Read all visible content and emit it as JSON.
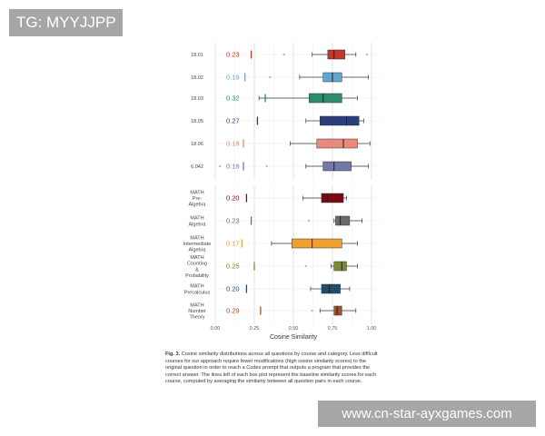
{
  "watermark_top": "TG: MYYJJPP",
  "watermark_bottom": "www.cn-star-ayxgames.com",
  "caption": {
    "label": "Fig. 3.",
    "text": "Cosine similarity distributions across all questions by course and category. Less difficult courses for our approach require fewer modifications (high cosine similarity scores) to the original question in order to reach a Codex prompt that outputs a program that provides the correct answer. The lines left of each box plot represent the baseline similarity scores for each course, computed by averaging the similarity between all question pairs in each course."
  },
  "chart_data": {
    "type": "boxplot",
    "xlabel": "Cosine Similarity",
    "xlim": [
      0,
      1
    ],
    "xticks": [
      "0.00",
      "0.25",
      "0.50",
      "0.75",
      "1.00"
    ],
    "grid": true,
    "panels": [
      {
        "rows": [
          {
            "label": [
              "18.01"
            ],
            "baseline": 0.23,
            "baseline_text": "0.23",
            "color": "#c0392b",
            "min": 0.62,
            "q1": 0.72,
            "median": 0.76,
            "q3": 0.83,
            "max": 0.9,
            "outliers": [
              0.44,
              0.97
            ]
          },
          {
            "label": [
              "18.02"
            ],
            "baseline": 0.19,
            "baseline_text": "0.19",
            "color": "#5fa8cc",
            "min": 0.54,
            "q1": 0.69,
            "median": 0.75,
            "q3": 0.81,
            "max": 0.98,
            "outliers": [
              0.35
            ]
          },
          {
            "label": [
              "18.03"
            ],
            "baseline": 0.32,
            "baseline_text": "0.32",
            "color": "#2e8b6e",
            "min": 0.28,
            "q1": 0.6,
            "median": 0.69,
            "q3": 0.81,
            "max": 0.91,
            "outliers": []
          },
          {
            "label": [
              "18.05"
            ],
            "baseline": 0.27,
            "baseline_text": "0.27",
            "color": "#2c3e7a",
            "min": 0.58,
            "q1": 0.67,
            "median": 0.84,
            "q3": 0.92,
            "max": 0.95,
            "outliers": []
          },
          {
            "label": [
              "18.06"
            ],
            "baseline": 0.18,
            "baseline_text": "0.18",
            "color": "#e8897a",
            "min": 0.48,
            "q1": 0.65,
            "median": 0.82,
            "q3": 0.91,
            "max": 0.99,
            "outliers": []
          },
          {
            "label": [
              "6.042"
            ],
            "baseline": 0.18,
            "baseline_text": "0.18",
            "color": "#7478a6",
            "min": 0.58,
            "q1": 0.69,
            "median": 0.76,
            "q3": 0.87,
            "max": 0.98,
            "outliers": [
              0.03,
              0.33
            ]
          }
        ]
      },
      {
        "rows": [
          {
            "label": [
              "MATH",
              "Pre-",
              "Algebra"
            ],
            "baseline": 0.2,
            "baseline_text": "0.20",
            "color": "#7a0a14",
            "min": 0.56,
            "q1": 0.68,
            "median": 0.72,
            "q3": 0.82,
            "max": 0.84,
            "outliers": []
          },
          {
            "label": [
              "MATH",
              "Algebra"
            ],
            "baseline": 0.23,
            "baseline_text": "0.23",
            "color": "#6b6b6b",
            "min": 0.76,
            "q1": 0.77,
            "median": 0.8,
            "q3": 0.86,
            "max": 0.94,
            "outliers": [
              0.6
            ]
          },
          {
            "label": [
              "MATH",
              "Intermediate",
              "Algebra"
            ],
            "baseline": 0.17,
            "baseline_text": "0.17",
            "color": "#f0a030",
            "min": 0.36,
            "q1": 0.49,
            "median": 0.62,
            "q3": 0.81,
            "max": 0.91,
            "outliers": []
          },
          {
            "label": [
              "MATH",
              "Counting",
              "&",
              "Probability"
            ],
            "baseline": 0.25,
            "baseline_text": "0.25",
            "color": "#7a8a3a",
            "min": 0.74,
            "q1": 0.76,
            "median": 0.81,
            "q3": 0.84,
            "max": 0.91,
            "outliers": [
              0.58
            ]
          },
          {
            "label": [
              "MATH",
              "Precalculus"
            ],
            "baseline": 0.2,
            "baseline_text": "0.20",
            "color": "#1f4e6b",
            "min": 0.61,
            "q1": 0.68,
            "median": 0.73,
            "q3": 0.8,
            "max": 0.86,
            "outliers": []
          },
          {
            "label": [
              "MATH",
              "Number",
              "Theory"
            ],
            "baseline": 0.29,
            "baseline_text": "0.29",
            "color": "#a0522d",
            "min": 0.67,
            "q1": 0.76,
            "median": 0.78,
            "q3": 0.81,
            "max": 0.9,
            "outliers": [
              0.62
            ]
          }
        ]
      }
    ]
  }
}
